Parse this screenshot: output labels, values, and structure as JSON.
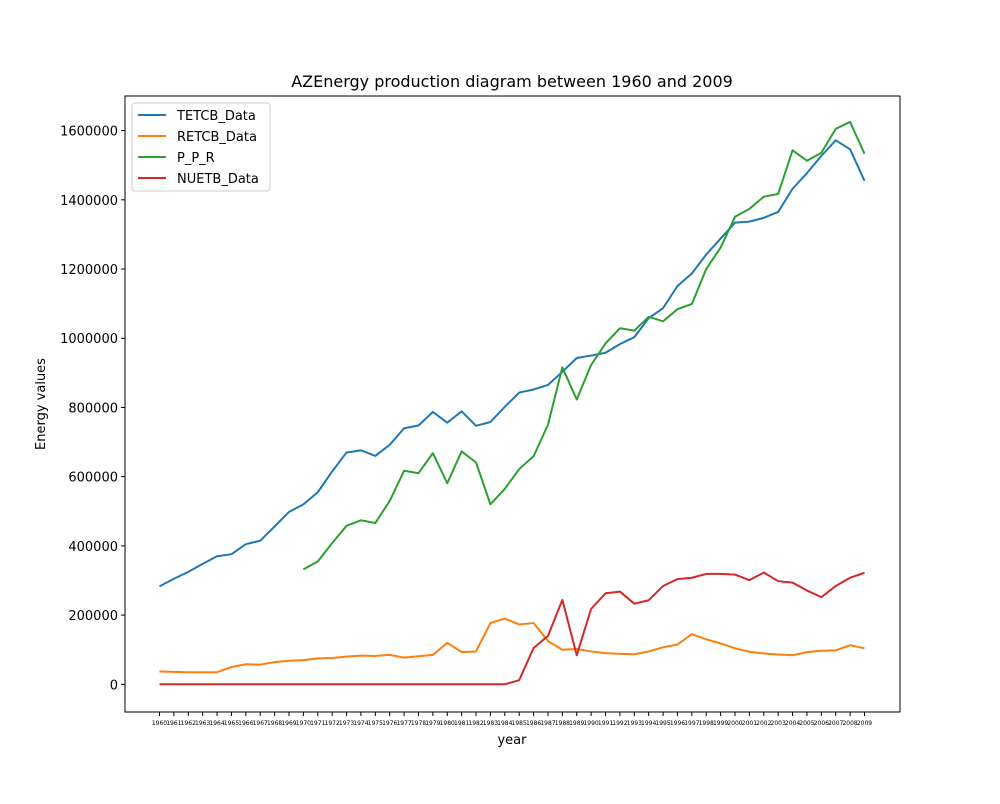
{
  "chart_data": {
    "type": "line",
    "title": "AZEnergy production diagram between 1960 and 2009",
    "xlabel": "year",
    "ylabel": "Energy values",
    "ylim": [
      -80000,
      1700000
    ],
    "yticks": [
      0,
      200000,
      400000,
      600000,
      800000,
      1000000,
      1200000,
      1400000,
      1600000
    ],
    "ytick_labels": [
      "0",
      "200000",
      "400000",
      "600000",
      "800000",
      "1000000",
      "1200000",
      "1400000",
      "1600000"
    ],
    "grid": false,
    "legend_position": "top-left",
    "categories": [
      "1960",
      "1961",
      "1962",
      "1963",
      "1964",
      "1965",
      "1966",
      "1967",
      "1968",
      "1969",
      "1970",
      "1971",
      "1972",
      "1973",
      "1974",
      "1975",
      "1976",
      "1977",
      "1978",
      "1979",
      "1980",
      "1981",
      "1982",
      "1983",
      "1984",
      "1985",
      "1986",
      "1987",
      "1988",
      "1989",
      "1990",
      "1991",
      "1992",
      "1993",
      "1994",
      "1995",
      "1996",
      "1997",
      "1998",
      "1999",
      "2000",
      "2001",
      "2002",
      "2003",
      "2004",
      "2005",
      "2006",
      "2007",
      "2008",
      "2009"
    ],
    "series": [
      {
        "name": "TETCB_Data",
        "color": "#1f77b4",
        "values": [
          283000,
          305000,
          325000,
          348000,
          370000,
          376000,
          405000,
          415000,
          456000,
          498000,
          520000,
          555000,
          615000,
          670000,
          676000,
          660000,
          692000,
          740000,
          748000,
          787000,
          756000,
          789000,
          747000,
          758000,
          802000,
          843000,
          852000,
          865000,
          903000,
          943000,
          950000,
          958000,
          983000,
          1003000,
          1058000,
          1087000,
          1151000,
          1187000,
          1242000,
          1288000,
          1334000,
          1337000,
          1348000,
          1365000,
          1432000,
          1477000,
          1527000,
          1572000,
          1546000,
          1455000
        ]
      },
      {
        "name": "RETCB_Data",
        "color": "#ff7f0e",
        "values": [
          37000,
          36000,
          35000,
          35000,
          35000,
          50000,
          58000,
          57000,
          64000,
          68000,
          70000,
          75000,
          76000,
          80000,
          83000,
          82000,
          85000,
          77000,
          81000,
          85000,
          120000,
          93000,
          95000,
          177000,
          190000,
          173000,
          177000,
          125000,
          100000,
          102000,
          95000,
          90000,
          88000,
          87000,
          95000,
          107000,
          115000,
          145000,
          130000,
          118000,
          104000,
          94000,
          89000,
          86000,
          84000,
          93000,
          97000,
          98000,
          113000,
          104000
        ]
      },
      {
        "name": "P_P_R",
        "color": "#2ca02c",
        "values": [
          null,
          null,
          null,
          null,
          null,
          null,
          null,
          null,
          null,
          null,
          332000,
          355000,
          408000,
          458000,
          474000,
          466000,
          530000,
          617000,
          610000,
          668000,
          581000,
          673000,
          641000,
          520000,
          565000,
          622000,
          659000,
          750000,
          916000,
          823000,
          923000,
          985000,
          1029000,
          1022000,
          1062000,
          1049000,
          1084000,
          1099000,
          1200000,
          1262000,
          1351000,
          1374000,
          1409000,
          1417000,
          1543000,
          1513000,
          1536000,
          1605000,
          1625000,
          1533000
        ]
      },
      {
        "name": "NUETB_Data",
        "color": "#d62728",
        "values": [
          0,
          0,
          0,
          0,
          0,
          0,
          0,
          0,
          0,
          0,
          0,
          0,
          0,
          0,
          0,
          0,
          0,
          0,
          0,
          0,
          0,
          0,
          0,
          0,
          0,
          12000,
          105000,
          140000,
          244000,
          84000,
          218000,
          263000,
          268000,
          233000,
          243000,
          284000,
          304000,
          308000,
          319000,
          319000,
          317000,
          301000,
          323000,
          298000,
          294000,
          271000,
          252000,
          284000,
          308000,
          322000
        ]
      }
    ]
  }
}
